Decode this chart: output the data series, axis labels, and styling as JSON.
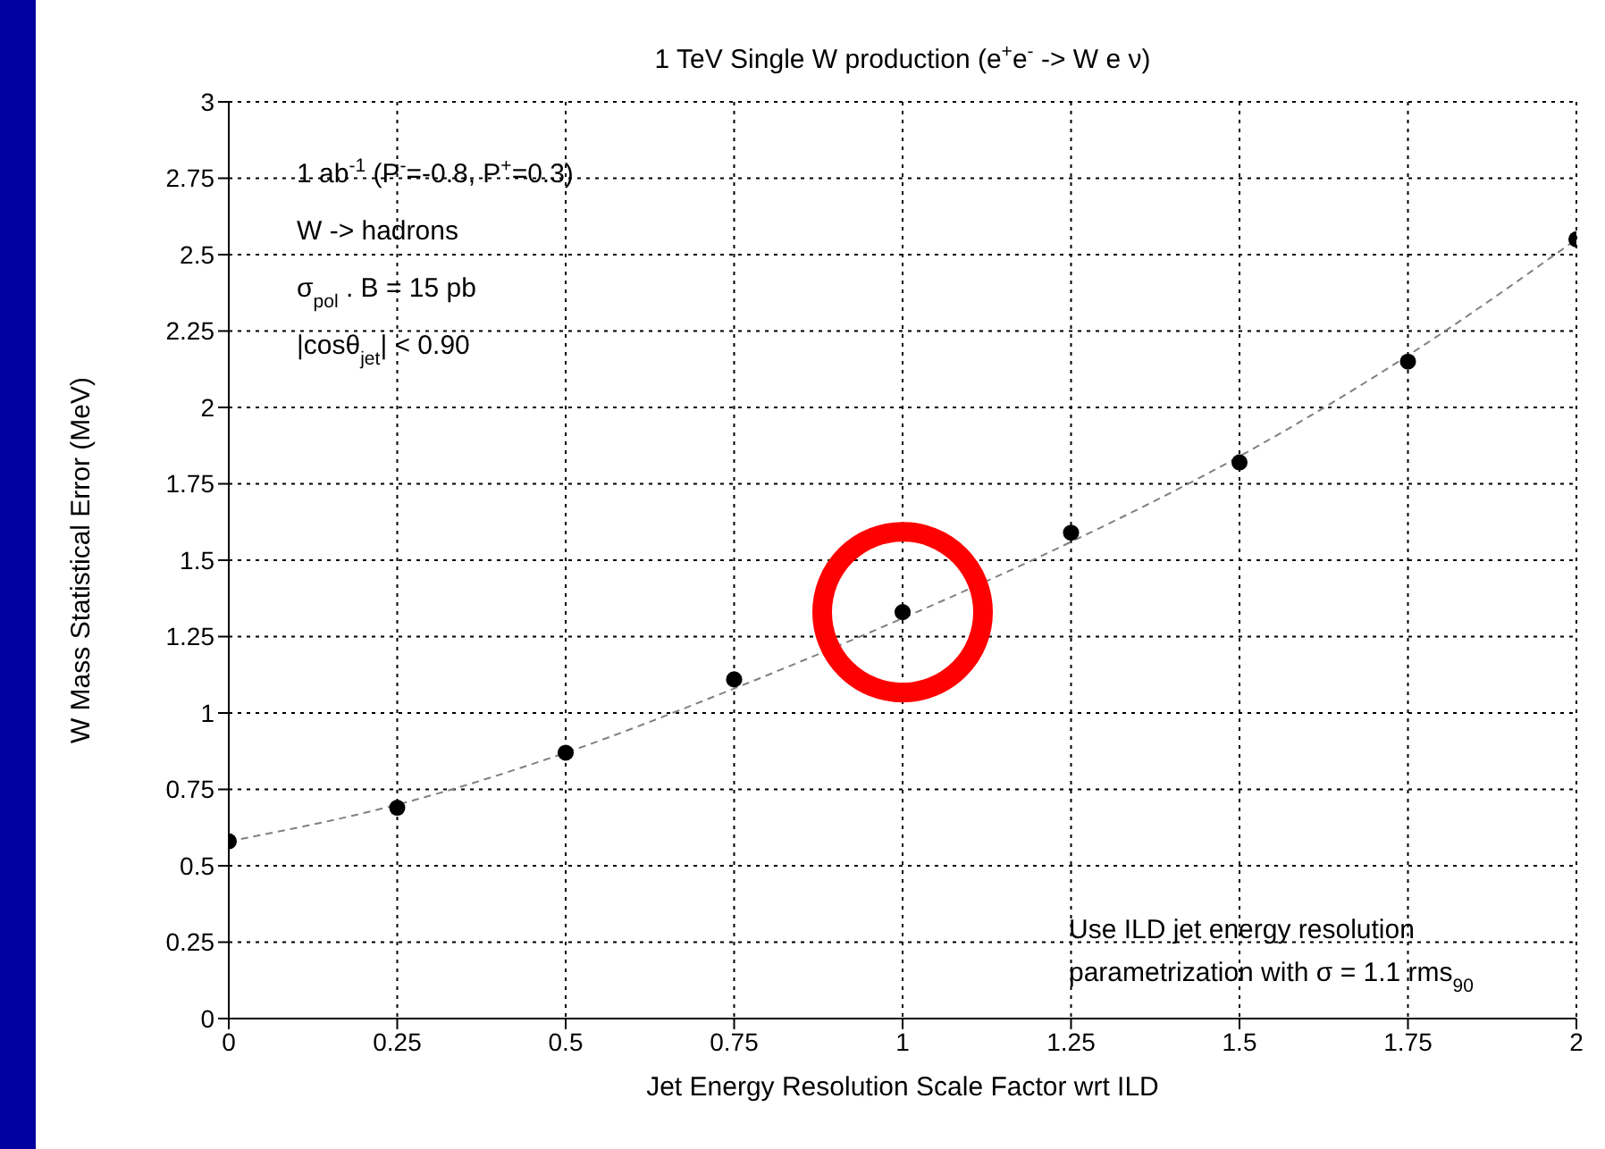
{
  "chart_data": {
    "type": "scatter",
    "title": "1 TeV Single W production (e$^{+}$e$^{-}$ -> W e ν)",
    "xlabel": "Jet Energy Resolution Scale Factor wrt ILD",
    "ylabel": "W Mass Statistical Error (MeV)",
    "x": [
      0,
      0.25,
      0.5,
      0.75,
      1,
      1.25,
      1.5,
      1.75,
      2
    ],
    "series": [
      {
        "color": "#000000",
        "marker": "circle",
        "values": [
          0.58,
          0.69,
          0.87,
          1.11,
          1.33,
          1.59,
          1.82,
          2.15,
          2.55
        ]
      },
      {
        "type": "line",
        "color": "#808080",
        "line_style": "dashed",
        "marker": "none",
        "x": [
          0,
          0.25,
          0.5,
          0.75,
          1,
          1.25,
          1.5,
          1.75,
          2
        ],
        "values": [
          0.58,
          0.7,
          0.87,
          1.08,
          1.31,
          1.56,
          1.84,
          2.17,
          2.55
        ]
      }
    ],
    "xlim": [
      0,
      2
    ],
    "xticks": [
      0,
      0.25,
      0.5,
      0.75,
      1,
      1.25,
      1.5,
      1.75,
      2
    ],
    "ylim": [
      0,
      3
    ],
    "yticks": [
      0,
      0.25,
      0.5,
      0.75,
      1,
      1.25,
      1.5,
      1.75,
      2,
      2.25,
      2.5,
      2.75,
      3
    ],
    "grid": true,
    "annotations": [
      "1 ab$^{-1}$ (P$^{-}$=-0.8, P$^{+}$=0.3)",
      "W -> hadrons",
      "σ$_{pol}$ . B = 15 pb",
      "|cosθ$_{jet}$| < 0.90",
      "Use ILD jet energy resolution",
      "parametrization with σ = 1.1 rms$_{90}$"
    ]
  }
}
